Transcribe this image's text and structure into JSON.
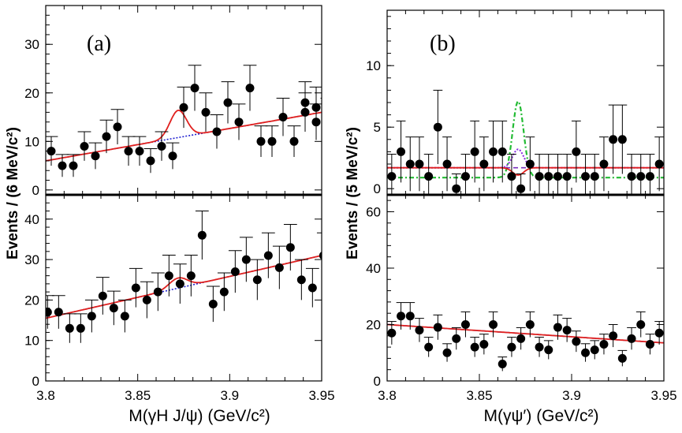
{
  "chart_data": [
    {
      "id": "a",
      "type": "scatter",
      "panel_label": "(a)",
      "ylabel": "Events / (6 MeV/c²)",
      "xlabel": "M(γ_H J/ψ) (GeV/c²)",
      "xlim": [
        3.8,
        3.95
      ],
      "x_ticks": [
        "3.8",
        "3.85",
        "3.9",
        "3.95"
      ],
      "subplots": [
        {
          "position": "top",
          "ylim": [
            -1,
            38
          ],
          "y_ticks": [
            "0",
            "10",
            "20",
            "30"
          ],
          "x": [
            3.803,
            3.809,
            3.815,
            3.821,
            3.827,
            3.833,
            3.839,
            3.845,
            3.851,
            3.857,
            3.863,
            3.869,
            3.875,
            3.881,
            3.887,
            3.893,
            3.899,
            3.905,
            3.911,
            3.917,
            3.923,
            3.929,
            3.935,
            3.941,
            3.947
          ],
          "y": [
            8,
            5,
            5,
            9,
            7,
            11,
            13,
            8,
            8,
            6,
            9,
            7,
            17,
            21,
            16,
            12,
            18,
            14,
            21,
            10,
            10,
            15,
            10,
            18,
            17
          ],
          "err": [
            3,
            2.3,
            2.3,
            3,
            2.7,
            3.4,
            3.6,
            3,
            3,
            2.5,
            3,
            2.7,
            4.2,
            4.7,
            4,
            3.5,
            4.3,
            3.7,
            4.7,
            3.2,
            3.2,
            3.9,
            3.2,
            4.3,
            4.2
          ],
          "extra_points": [
            {
              "x": 3.941,
              "y": 16,
              "err": 4
            },
            {
              "x": 3.947,
              "y": 14,
              "err": 3.7
            },
            {
              "x": 3.953,
              "y": 15,
              "err": 3.9
            }
          ],
          "fit_total": {
            "color": "#e0201e",
            "peak_mass": 3.872,
            "peak_height": 5.6,
            "width": 0.0045,
            "bg_at_3_8": 6,
            "bg_at_3_95": 16
          },
          "background": {
            "color": "#2020d0",
            "style": "dotted",
            "bg_at_3_8": 6,
            "bg_at_3_95": 16
          }
        },
        {
          "position": "bottom",
          "ylim": [
            0,
            46
          ],
          "y_ticks": [
            "0",
            "10",
            "20",
            "30",
            "40"
          ],
          "x": [
            3.801,
            3.807,
            3.813,
            3.819,
            3.825,
            3.831,
            3.837,
            3.843,
            3.849,
            3.855,
            3.861,
            3.867,
            3.873,
            3.879,
            3.885,
            3.891,
            3.897,
            3.903,
            3.909,
            3.915,
            3.921,
            3.927,
            3.933,
            3.939,
            3.945,
            3.951
          ],
          "y": [
            17,
            17,
            13,
            13,
            16,
            21,
            18,
            16,
            23,
            20,
            22,
            26,
            24,
            26,
            36,
            19,
            22,
            27,
            30,
            25,
            31,
            28,
            33,
            25,
            23,
            31
          ],
          "err": [
            4.1,
            4.1,
            3.6,
            3.6,
            4,
            4.6,
            4.2,
            4,
            4.8,
            4.5,
            4.7,
            5.1,
            4.9,
            5.1,
            6,
            4.4,
            4.7,
            5.2,
            5.5,
            5,
            5.6,
            5.3,
            5.7,
            5,
            4.8,
            5.6
          ],
          "fit_total": {
            "color": "#e0201e",
            "peak_mass": 3.872,
            "peak_height": 2.5,
            "width": 0.005,
            "bg_at_3_8": 15.5,
            "bg_at_3_95": 31
          },
          "background": {
            "color": "#2020d0",
            "style": "dotted",
            "bg_at_3_8": 15.5,
            "bg_at_3_95": 31
          }
        }
      ]
    },
    {
      "id": "b",
      "type": "scatter",
      "panel_label": "(b)",
      "ylabel": "Events / (5 MeV/c²)",
      "xlabel": "M(γψ′) (GeV/c²)",
      "xlim": [
        3.8,
        3.95
      ],
      "x_ticks": [
        "3.8",
        "3.85",
        "3.9",
        "3.95"
      ],
      "subplots": [
        {
          "position": "top",
          "ylim": [
            -0.5,
            14.5
          ],
          "y_ticks": [
            "0",
            "5",
            "10"
          ],
          "x": [
            3.8025,
            3.8075,
            3.8125,
            3.8175,
            3.8225,
            3.8275,
            3.8325,
            3.8375,
            3.8425,
            3.8475,
            3.8525,
            3.8575,
            3.8625,
            3.8675,
            3.8725,
            3.8775,
            3.8825,
            3.8875,
            3.8925,
            3.8975,
            3.9025,
            3.9075,
            3.9125,
            3.9175,
            3.9225,
            3.9275,
            3.9325,
            3.9375,
            3.9425,
            3.9475
          ],
          "y": [
            1,
            3,
            2,
            2,
            1,
            5,
            2,
            0,
            1,
            3,
            2,
            3,
            3,
            1,
            0,
            2,
            1,
            1,
            1,
            1,
            3,
            1,
            1,
            2,
            4,
            4,
            1,
            1,
            1,
            2
          ],
          "err": [
            1.8,
            2.5,
            2.2,
            2.2,
            1.8,
            3,
            2.2,
            1.2,
            1.8,
            2.5,
            2.2,
            2.5,
            2.5,
            1.8,
            1.2,
            2.2,
            1.8,
            1.8,
            1.8,
            1.8,
            2.5,
            1.8,
            1.8,
            2.2,
            2.8,
            2.8,
            1.8,
            1.8,
            1.8,
            2.2
          ],
          "fit_total": {
            "color": "#e0201e",
            "peak_mass": 3.871,
            "peak_height": -0.6,
            "width": 0.003,
            "bg_level": 1.7
          },
          "background": {
            "color": "#7b2fbe",
            "style": "dashed",
            "bg_level": 1.7
          },
          "upper_limit": {
            "color": "#8a2be2",
            "style": "dotted",
            "peak_mass": 3.871,
            "peak_height": 1.5,
            "width": 0.003
          },
          "expected_signal": {
            "color": "#22bb33",
            "style": "dash-dot",
            "peak_mass": 3.871,
            "peak_height": 6.2,
            "width": 0.003,
            "base": 0.9
          }
        },
        {
          "position": "bottom",
          "ylim": [
            0,
            66
          ],
          "y_ticks": [
            "0",
            "20",
            "40",
            "60"
          ],
          "x": [
            3.8025,
            3.8075,
            3.8125,
            3.8175,
            3.8225,
            3.8275,
            3.8325,
            3.8375,
            3.8425,
            3.8475,
            3.8525,
            3.8575,
            3.8625,
            3.8675,
            3.8725,
            3.8775,
            3.8825,
            3.8875,
            3.8925,
            3.8975,
            3.9025,
            3.9075,
            3.9125,
            3.9175,
            3.9225,
            3.9275,
            3.9325,
            3.9375,
            3.9425,
            3.9475
          ],
          "y": [
            17,
            23,
            23,
            18,
            12,
            19,
            10,
            15,
            20,
            12,
            13,
            20,
            6,
            12,
            15,
            20,
            12,
            11,
            19,
            18,
            14,
            10,
            11,
            13,
            16,
            8,
            15,
            20,
            13,
            17
          ],
          "err": [
            4.1,
            4.8,
            4.8,
            4.2,
            3.5,
            4.4,
            3.2,
            3.9,
            4.5,
            3.5,
            3.6,
            4.5,
            2.5,
            3.5,
            3.9,
            4.5,
            3.5,
            3.3,
            4.4,
            4.2,
            3.7,
            3.2,
            3.3,
            3.6,
            4,
            2.8,
            3.9,
            4.5,
            3.6,
            4.1
          ],
          "fit_total": {
            "color": "#e0201e",
            "bg_at_3_8": 20,
            "bg_at_3_95": 13.5
          },
          "background": {
            "color": "#4040e0",
            "style": "dashed",
            "bg_at_3_8": 20,
            "bg_at_3_95": 13.5
          }
        }
      ]
    }
  ]
}
